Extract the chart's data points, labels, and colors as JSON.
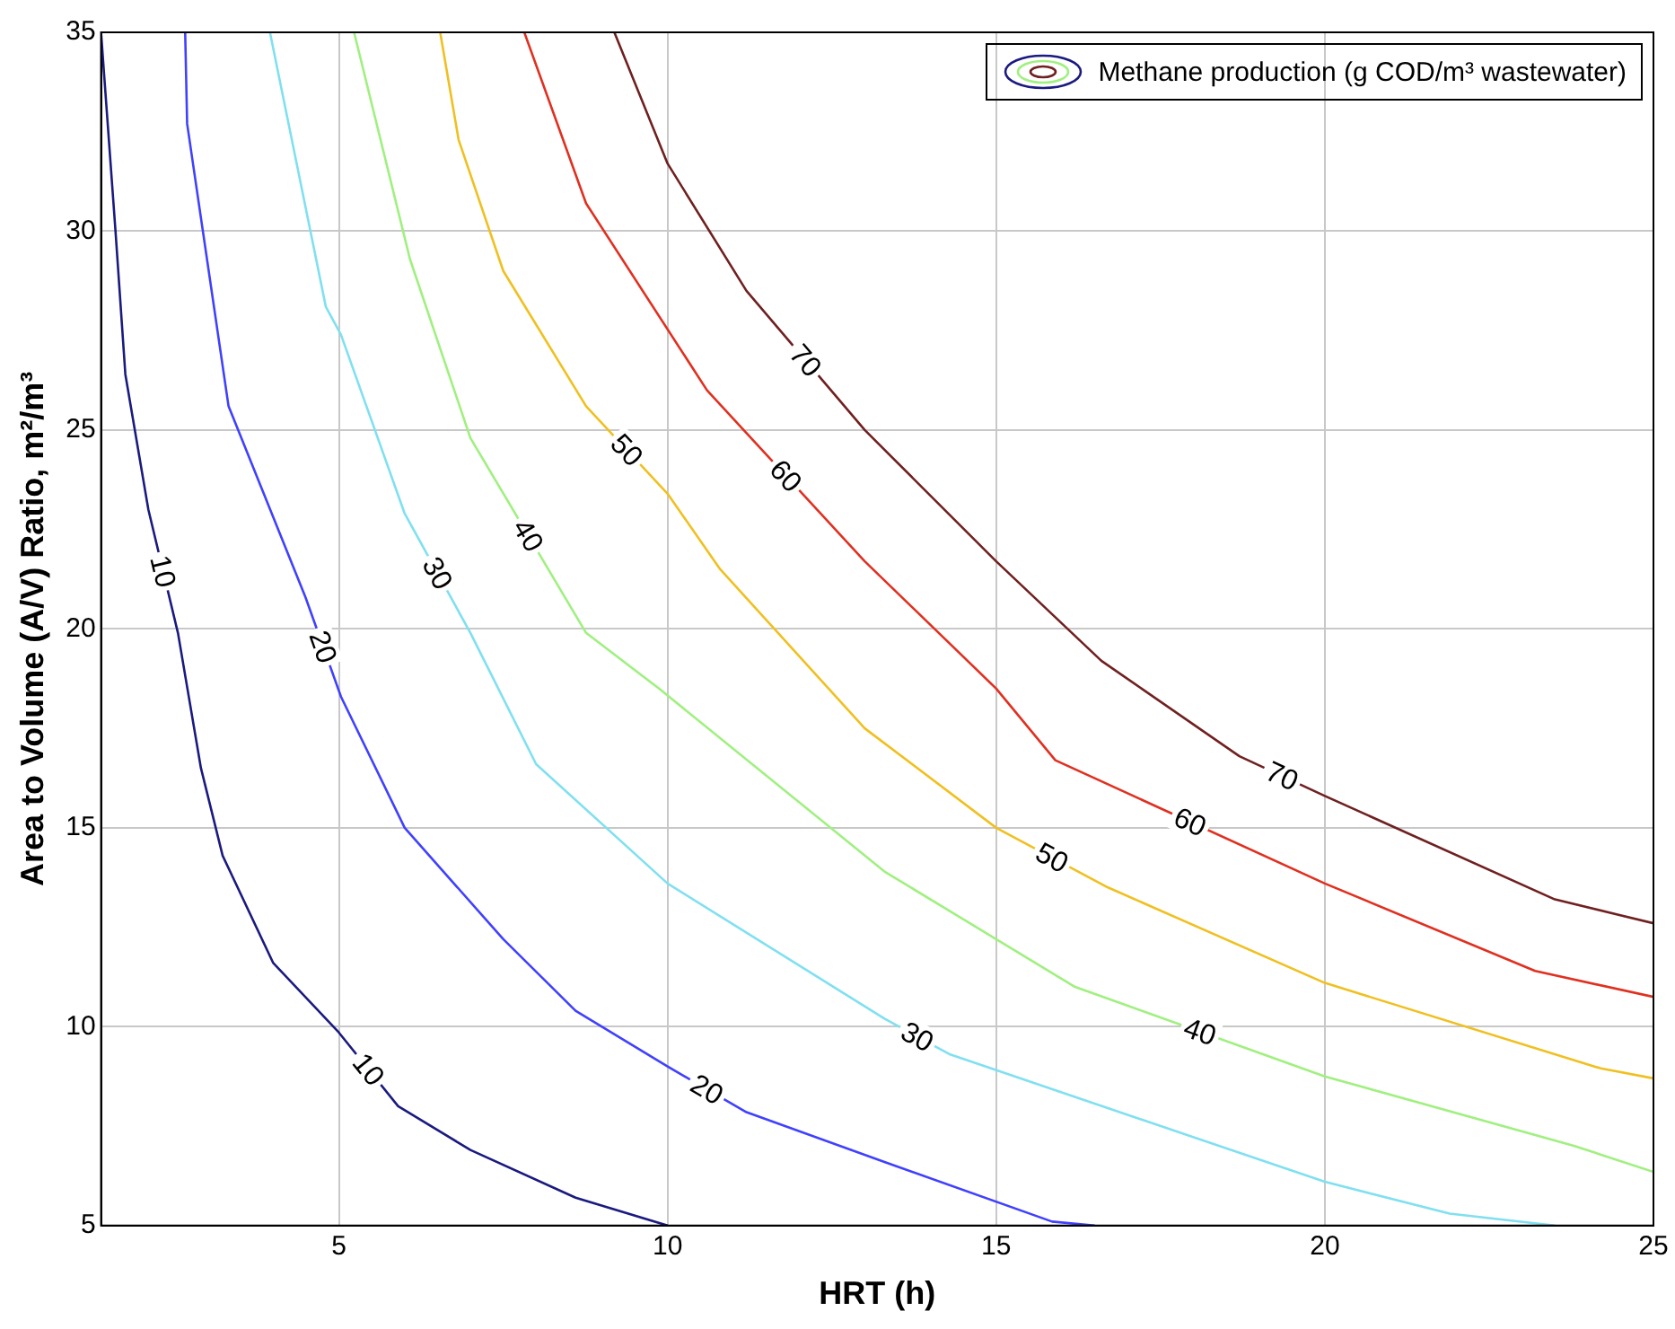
{
  "chart_data": {
    "type": "line",
    "xlabel": "HRT (h)",
    "ylabel": "Area to Volume (A/V) Ratio, m²/m³",
    "legend_title": "Methane production (g COD/m³ wastewater)",
    "grid": true,
    "marker": "none",
    "line_style": "solid",
    "xlim": [
      1.38,
      25
    ],
    "xticks": [
      5,
      10,
      15,
      20,
      25
    ],
    "ylim": [
      5,
      35
    ],
    "yticks": [
      5,
      10,
      15,
      20,
      25,
      30,
      35
    ],
    "series": [
      {
        "name": "10",
        "color": "#1a1a80",
        "x": [
          1.38,
          1.6,
          1.75,
          2.1,
          2.55,
          2.9,
          3.23,
          4,
          5,
          5.9,
          7,
          8.6,
          10
        ],
        "values": [
          35,
          30,
          26.4,
          23,
          19.9,
          16.5,
          14.3,
          11.6,
          9.85,
          8,
          6.9,
          5.7,
          5
        ]
      },
      {
        "name": "20",
        "color": "#4040ff",
        "x": [
          2.66,
          2.69,
          3.32,
          4.49,
          5.03,
          6,
          7.5,
          8.6,
          10,
          11.2,
          13.3,
          15.85,
          16.5
        ],
        "values": [
          35,
          32.7,
          25.6,
          20.8,
          18.3,
          15,
          12.2,
          10.4,
          9,
          7.85,
          6.6,
          5.1,
          5
        ]
      },
      {
        "name": "30",
        "color": "#80e0f0",
        "x": [
          3.95,
          4.8,
          5.03,
          6,
          7,
          8,
          10,
          13.3,
          14.3,
          20,
          21.9,
          23.5
        ],
        "values": [
          35,
          28.1,
          27.4,
          22.9,
          19.9,
          16.6,
          13.6,
          10.2,
          9.3,
          6.1,
          5.3,
          5
        ]
      },
      {
        "name": "40",
        "color": "#a0f080",
        "x": [
          5.23,
          6.08,
          7,
          8.76,
          9.87,
          13.3,
          16.2,
          20,
          23.8,
          25
        ],
        "values": [
          35,
          29.3,
          24.8,
          19.9,
          18.5,
          13.9,
          11,
          8.75,
          7,
          6.35
        ]
      },
      {
        "name": "50",
        "color": "#f0c020",
        "x": [
          6.54,
          6.82,
          7.5,
          8.76,
          10,
          10.8,
          13,
          15,
          16.7,
          20,
          24.2,
          25
        ],
        "values": [
          35,
          32.3,
          29,
          25.6,
          23.4,
          21.5,
          17.5,
          15,
          13.5,
          11.1,
          8.95,
          8.7
        ]
      },
      {
        "name": "60",
        "color": "#e03020",
        "x": [
          7.82,
          8.76,
          10.6,
          13,
          15,
          15.9,
          20,
          23.2,
          25
        ],
        "values": [
          35,
          30.7,
          26,
          21.7,
          18.5,
          16.7,
          13.6,
          11.4,
          10.75
        ]
      },
      {
        "name": "70",
        "color": "#702020",
        "x": [
          9.19,
          10,
          11.2,
          13,
          15,
          16.6,
          18.7,
          20,
          23.5,
          25
        ],
        "values": [
          35,
          31.7,
          28.5,
          25,
          21.7,
          19.2,
          16.8,
          15.8,
          13.2,
          12.6
        ]
      }
    ]
  }
}
